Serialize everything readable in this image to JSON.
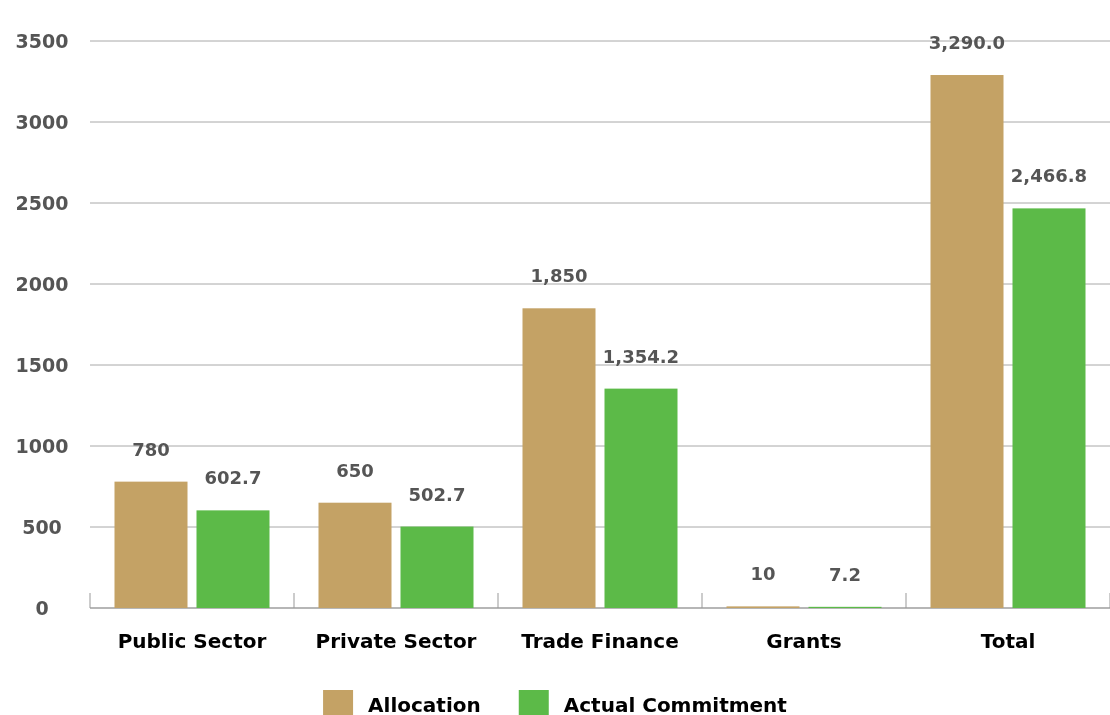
{
  "chart_data": {
    "type": "bar",
    "categories": [
      "Public Sector",
      "Private Sector",
      "Trade Finance",
      "Grants",
      "Total"
    ],
    "series": [
      {
        "name": "Allocation",
        "color": "#c4a265",
        "values": [
          780,
          650,
          1850,
          10,
          3290
        ],
        "value_labels": [
          "780",
          "650",
          "1,850",
          "10",
          "3,290.0"
        ]
      },
      {
        "name": "Actual Commitment",
        "color": "#5cba48",
        "values": [
          602.7,
          502.7,
          1354.2,
          7.2,
          2466.8
        ],
        "value_labels": [
          "602.7",
          "502.7",
          "1,354.2",
          "7.2",
          "2,466.8"
        ]
      }
    ],
    "ylim": [
      0,
      3500
    ],
    "yticks": [
      0,
      500,
      1000,
      1500,
      2000,
      2500,
      3000,
      3500
    ],
    "grid": "y",
    "legend": "bottom"
  }
}
